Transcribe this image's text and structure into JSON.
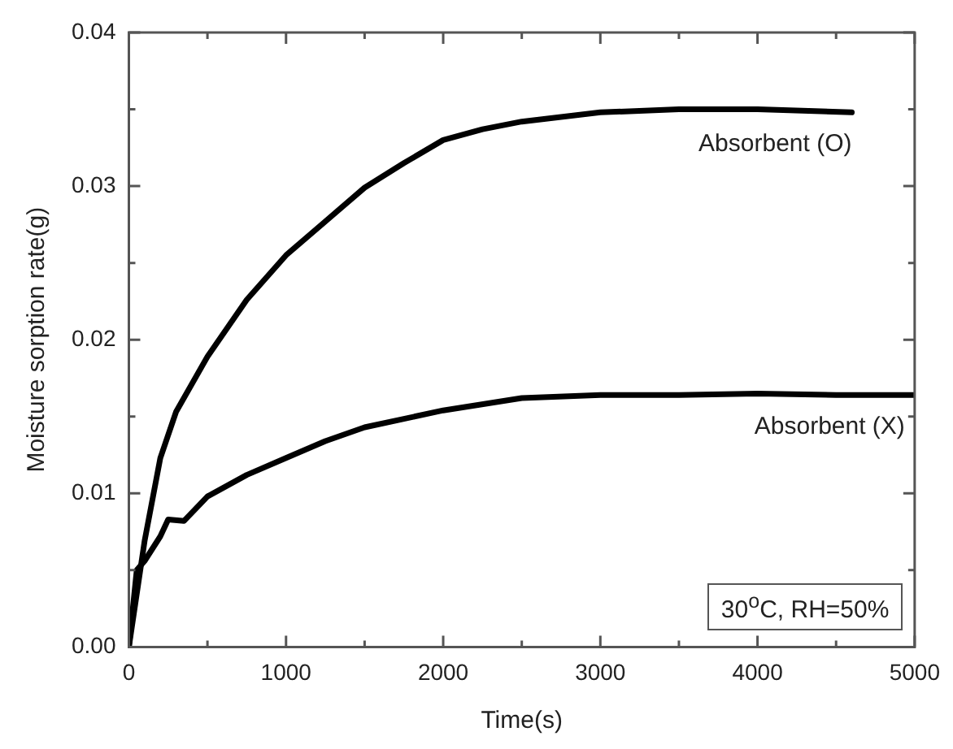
{
  "chart_data": {
    "type": "line",
    "xlabel": "Time(s)",
    "ylabel": "Moisture sorption rate(g)",
    "xlim": [
      0,
      5000
    ],
    "ylim": [
      0,
      0.04
    ],
    "xticks": [
      0,
      {
        "value": 500,
        "label": null
      },
      1000,
      {
        "value": 1500,
        "label": null
      },
      2000,
      {
        "value": 2500,
        "label": null
      },
      3000,
      {
        "value": 3500,
        "label": null
      },
      4000,
      {
        "value": 4500,
        "label": null
      },
      5000
    ],
    "yticks": [
      {
        "value": 0,
        "label": "0.00"
      },
      {
        "value": 0.005,
        "label": null
      },
      {
        "value": 0.01,
        "label": "0.01"
      },
      {
        "value": 0.015,
        "label": null
      },
      {
        "value": 0.02,
        "label": "0.02"
      },
      {
        "value": 0.025,
        "label": null
      },
      {
        "value": 0.03,
        "label": "0.03"
      },
      {
        "value": 0.035,
        "label": null
      },
      {
        "value": 0.04,
        "label": "0.04"
      }
    ],
    "grid": false,
    "legend": false,
    "marker": "none",
    "line_style": "solid",
    "series": [
      {
        "name": "Absorbent (O)",
        "color": "#000000",
        "x": [
          0,
          100,
          200,
          300,
          500,
          750,
          1000,
          1250,
          1500,
          1750,
          2000,
          2250,
          2500,
          3000,
          3500,
          4000,
          4600
        ],
        "values": [
          0,
          0.0069,
          0.0123,
          0.0153,
          0.0189,
          0.0226,
          0.0255,
          0.0277,
          0.0299,
          0.0315,
          0.033,
          0.0337,
          0.0342,
          0.0348,
          0.035,
          0.035,
          0.0348
        ]
      },
      {
        "name": "Absorbent (X)",
        "color": "#000000",
        "x": [
          0,
          50,
          100,
          200,
          250,
          350,
          500,
          750,
          1000,
          1250,
          1500,
          2000,
          2500,
          3000,
          3500,
          4000,
          4500,
          5000
        ],
        "values": [
          0,
          0.005,
          0.0056,
          0.0072,
          0.0083,
          0.0082,
          0.0098,
          0.0112,
          0.0123,
          0.0134,
          0.0143,
          0.0154,
          0.0162,
          0.0164,
          0.0164,
          0.0165,
          0.0164,
          0.0164
        ]
      }
    ],
    "annotations": [
      "30$^{o}$C, RH=50%"
    ]
  }
}
